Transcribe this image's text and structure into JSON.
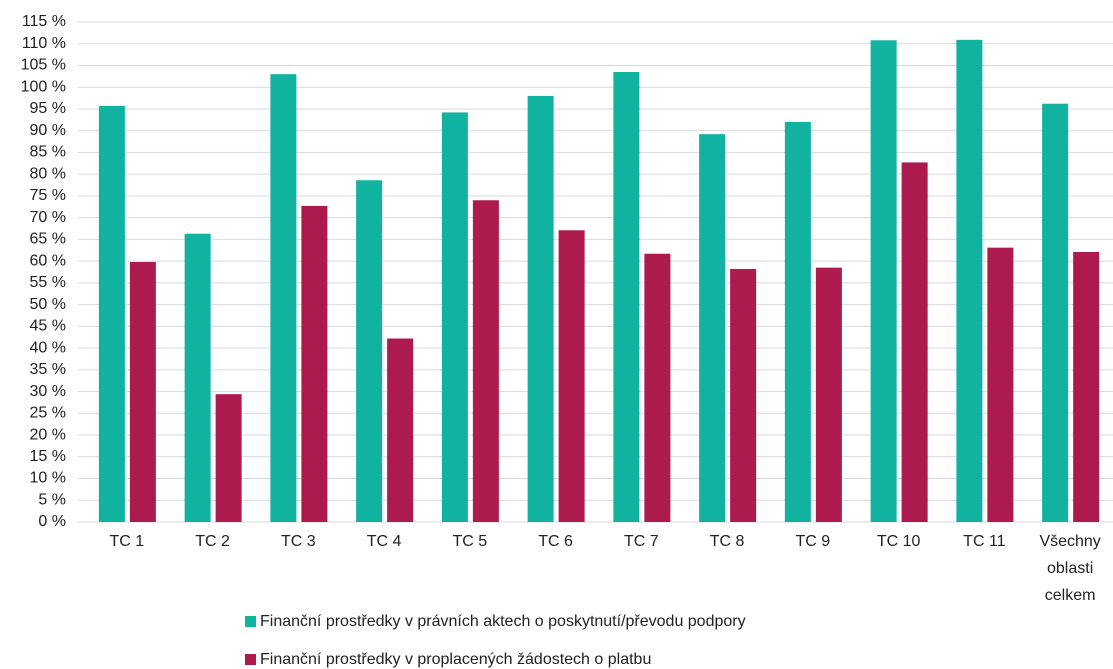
{
  "chart_data": {
    "type": "bar",
    "categories": [
      "TC 1",
      "TC 2",
      "TC 3",
      "TC 4",
      "TC 5",
      "TC 6",
      "TC 7",
      "TC 8",
      "TC 9",
      "TC 10",
      "TC 11",
      "Všechny oblasti celkem"
    ],
    "series": [
      {
        "name": "Finanční prostředky v právních aktech o poskytnutí/převodu podpory",
        "color": "#12b2a0",
        "values": [
          95.7,
          66.3,
          103,
          78.6,
          94.2,
          98,
          103.5,
          89.2,
          92,
          110.8,
          110.9,
          96.2
        ]
      },
      {
        "name": "Finanční prostředky v proplacených žádostech o platbu",
        "color": "#ad1a4e",
        "values": [
          59.8,
          29.4,
          72.7,
          42.2,
          74,
          67.1,
          61.7,
          58.2,
          58.5,
          82.7,
          63.1,
          62.1
        ]
      }
    ],
    "ylim": [
      0,
      115
    ],
    "yticks": [
      {
        "value": 0,
        "label": "0 %"
      },
      {
        "value": 5,
        "label": "5 %"
      },
      {
        "value": 10,
        "label": "10 %"
      },
      {
        "value": 15,
        "label": "15 %"
      },
      {
        "value": 20,
        "label": "20 %"
      },
      {
        "value": 25,
        "label": "25 %"
      },
      {
        "value": 30,
        "label": "30 %"
      },
      {
        "value": 35,
        "label": "35 %"
      },
      {
        "value": 40,
        "label": "40 %"
      },
      {
        "value": 45,
        "label": "45 %"
      },
      {
        "value": 50,
        "label": "50 %"
      },
      {
        "value": 55,
        "label": "55 %"
      },
      {
        "value": 60,
        "label": "60 %"
      },
      {
        "value": 65,
        "label": "65 %"
      },
      {
        "value": 70,
        "label": "70 %"
      },
      {
        "value": 75,
        "label": "75 %"
      },
      {
        "value": 80,
        "label": "80 %"
      },
      {
        "value": 85,
        "label": "85 %"
      },
      {
        "value": 90,
        "label": "90 %"
      },
      {
        "value": 95,
        "label": "95 %"
      },
      {
        "value": 100,
        "label": "100 %"
      },
      {
        "value": 105,
        "label": "105 %"
      },
      {
        "value": 110,
        "label": "110 %"
      },
      {
        "value": 115,
        "label": "115 %"
      }
    ],
    "grid": true,
    "legend": "bottom"
  }
}
